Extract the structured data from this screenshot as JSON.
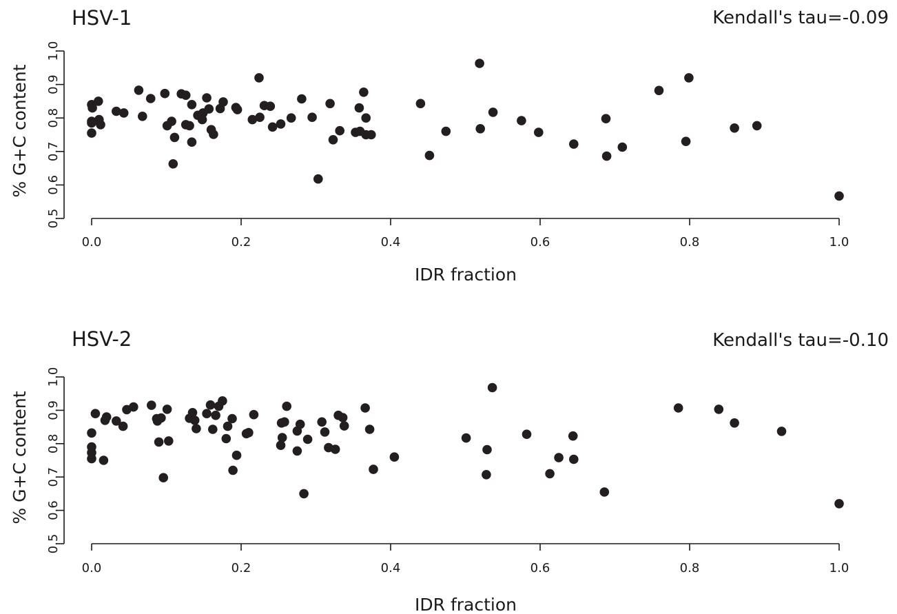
{
  "chart_data": [
    {
      "type": "scatter",
      "title": "HSV-1",
      "annotation": "Kendall's tau=-0.09",
      "xlabel": "IDR fraction",
      "ylabel": "% G+C content",
      "xlim": [
        0.0,
        1.0
      ],
      "ylim": [
        0.5,
        1.0
      ],
      "xticks": [
        "0.0",
        "0.2",
        "0.4",
        "0.6",
        "0.8",
        "1.0"
      ],
      "yticks": [
        "0.5",
        "0.6",
        "0.7",
        "0.8",
        "0.9",
        "1.0"
      ],
      "grid": false,
      "points": [
        [
          0.0,
          0.84
        ],
        [
          0.001,
          0.83
        ],
        [
          0.0,
          0.79
        ],
        [
          0.0,
          0.785
        ],
        [
          0.0,
          0.755
        ],
        [
          0.009,
          0.85
        ],
        [
          0.01,
          0.795
        ],
        [
          0.012,
          0.78
        ],
        [
          0.033,
          0.82
        ],
        [
          0.043,
          0.815
        ],
        [
          0.063,
          0.883
        ],
        [
          0.068,
          0.805
        ],
        [
          0.079,
          0.858
        ],
        [
          0.098,
          0.873
        ],
        [
          0.101,
          0.777
        ],
        [
          0.107,
          0.79
        ],
        [
          0.109,
          0.663
        ],
        [
          0.111,
          0.742
        ],
        [
          0.12,
          0.872
        ],
        [
          0.126,
          0.868
        ],
        [
          0.126,
          0.78
        ],
        [
          0.131,
          0.777
        ],
        [
          0.134,
          0.84
        ],
        [
          0.134,
          0.728
        ],
        [
          0.142,
          0.808
        ],
        [
          0.148,
          0.795
        ],
        [
          0.149,
          0.815
        ],
        [
          0.154,
          0.86
        ],
        [
          0.157,
          0.827
        ],
        [
          0.16,
          0.765
        ],
        [
          0.163,
          0.751
        ],
        [
          0.172,
          0.828
        ],
        [
          0.176,
          0.848
        ],
        [
          0.193,
          0.831
        ],
        [
          0.195,
          0.825
        ],
        [
          0.215,
          0.795
        ],
        [
          0.224,
          0.92
        ],
        [
          0.225,
          0.802
        ],
        [
          0.231,
          0.837
        ],
        [
          0.239,
          0.835
        ],
        [
          0.242,
          0.773
        ],
        [
          0.253,
          0.782
        ],
        [
          0.267,
          0.8
        ],
        [
          0.281,
          0.857
        ],
        [
          0.295,
          0.802
        ],
        [
          0.303,
          0.618
        ],
        [
          0.319,
          0.843
        ],
        [
          0.323,
          0.735
        ],
        [
          0.332,
          0.762
        ],
        [
          0.353,
          0.757
        ],
        [
          0.358,
          0.83
        ],
        [
          0.359,
          0.76
        ],
        [
          0.364,
          0.877
        ],
        [
          0.367,
          0.8
        ],
        [
          0.367,
          0.75
        ],
        [
          0.374,
          0.75
        ],
        [
          0.44,
          0.843
        ],
        [
          0.452,
          0.688
        ],
        [
          0.474,
          0.76
        ],
        [
          0.519,
          0.963
        ],
        [
          0.52,
          0.768
        ],
        [
          0.537,
          0.817
        ],
        [
          0.575,
          0.792
        ],
        [
          0.598,
          0.757
        ],
        [
          0.645,
          0.722
        ],
        [
          0.688,
          0.798
        ],
        [
          0.689,
          0.686
        ],
        [
          0.71,
          0.713
        ],
        [
          0.759,
          0.882
        ],
        [
          0.795,
          0.73
        ],
        [
          0.799,
          0.92
        ],
        [
          0.86,
          0.77
        ],
        [
          0.89,
          0.777
        ],
        [
          1.0,
          0.567
        ]
      ]
    },
    {
      "type": "scatter",
      "title": "HSV-2",
      "annotation": "Kendall's tau=-0.10",
      "xlabel": "IDR fraction",
      "ylabel": "% G+C content",
      "xlim": [
        0.0,
        1.0
      ],
      "ylim": [
        0.5,
        1.0
      ],
      "xticks": [
        "0.0",
        "0.2",
        "0.4",
        "0.6",
        "0.8",
        "1.0"
      ],
      "yticks": [
        "0.5",
        "0.6",
        "0.7",
        "0.8",
        "0.9",
        "1.0"
      ],
      "grid": false,
      "points": [
        [
          0.0,
          0.832
        ],
        [
          0.0,
          0.79
        ],
        [
          0.0,
          0.773
        ],
        [
          0.0,
          0.755
        ],
        [
          0.005,
          0.89
        ],
        [
          0.016,
          0.75
        ],
        [
          0.018,
          0.87
        ],
        [
          0.02,
          0.88
        ],
        [
          0.033,
          0.868
        ],
        [
          0.042,
          0.852
        ],
        [
          0.047,
          0.902
        ],
        [
          0.056,
          0.91
        ],
        [
          0.08,
          0.915
        ],
        [
          0.087,
          0.875
        ],
        [
          0.088,
          0.868
        ],
        [
          0.09,
          0.805
        ],
        [
          0.093,
          0.877
        ],
        [
          0.096,
          0.698
        ],
        [
          0.101,
          0.903
        ],
        [
          0.103,
          0.808
        ],
        [
          0.131,
          0.876
        ],
        [
          0.135,
          0.893
        ],
        [
          0.138,
          0.87
        ],
        [
          0.14,
          0.845
        ],
        [
          0.154,
          0.89
        ],
        [
          0.159,
          0.916
        ],
        [
          0.162,
          0.843
        ],
        [
          0.166,
          0.885
        ],
        [
          0.17,
          0.912
        ],
        [
          0.175,
          0.928
        ],
        [
          0.18,
          0.815
        ],
        [
          0.182,
          0.852
        ],
        [
          0.188,
          0.875
        ],
        [
          0.189,
          0.72
        ],
        [
          0.194,
          0.765
        ],
        [
          0.207,
          0.83
        ],
        [
          0.21,
          0.833
        ],
        [
          0.217,
          0.887
        ],
        [
          0.253,
          0.795
        ],
        [
          0.254,
          0.862
        ],
        [
          0.255,
          0.818
        ],
        [
          0.258,
          0.865
        ],
        [
          0.261,
          0.912
        ],
        [
          0.275,
          0.838
        ],
        [
          0.275,
          0.778
        ],
        [
          0.279,
          0.858
        ],
        [
          0.284,
          0.65
        ],
        [
          0.289,
          0.813
        ],
        [
          0.308,
          0.865
        ],
        [
          0.312,
          0.835
        ],
        [
          0.317,
          0.788
        ],
        [
          0.326,
          0.783
        ],
        [
          0.33,
          0.885
        ],
        [
          0.336,
          0.878
        ],
        [
          0.338,
          0.853
        ],
        [
          0.366,
          0.907
        ],
        [
          0.372,
          0.843
        ],
        [
          0.377,
          0.723
        ],
        [
          0.405,
          0.76
        ],
        [
          0.501,
          0.817
        ],
        [
          0.528,
          0.707
        ],
        [
          0.529,
          0.782
        ],
        [
          0.536,
          0.968
        ],
        [
          0.582,
          0.828
        ],
        [
          0.613,
          0.71
        ],
        [
          0.625,
          0.758
        ],
        [
          0.644,
          0.823
        ],
        [
          0.645,
          0.753
        ],
        [
          0.686,
          0.655
        ],
        [
          0.785,
          0.907
        ],
        [
          0.839,
          0.903
        ],
        [
          0.86,
          0.862
        ],
        [
          0.923,
          0.837
        ],
        [
          1.0,
          0.62
        ]
      ]
    }
  ]
}
